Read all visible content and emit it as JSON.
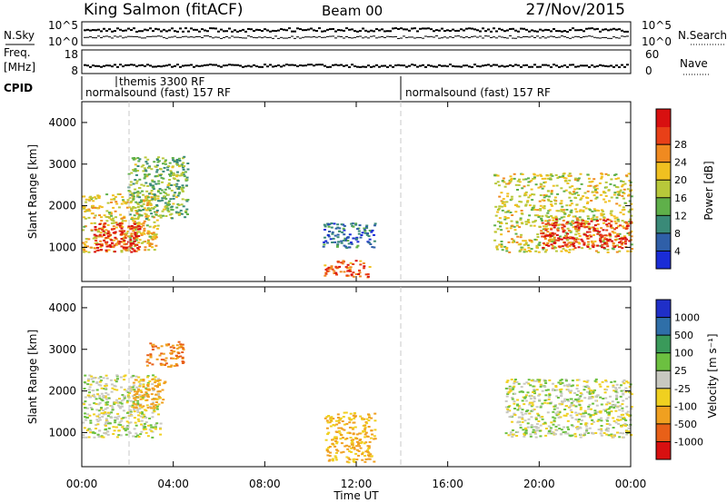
{
  "header": {
    "station": "King Salmon (fitACF)",
    "beam": "Beam 00",
    "date": "27/Nov/2015"
  },
  "strips": {
    "nsky": {
      "label": "N.Sky",
      "ticks": [
        "10^5",
        "10^0"
      ]
    },
    "nsearch": {
      "label": "N.Search",
      "ticks": [
        "10^5",
        "10^0"
      ]
    },
    "freq": {
      "label_line1": "Freq.",
      "label_line2": "[MHz]",
      "ticks": [
        "18",
        "8"
      ]
    },
    "nave": {
      "label": "Nave",
      "ticks": [
        "60",
        "0"
      ]
    },
    "cpid": {
      "label": "CPID",
      "modes": [
        "normalsound (fast) 157 RF",
        "themis 3300 RF",
        "normalsound (fast) 157 RF"
      ]
    }
  },
  "x_axis": {
    "label": "Time UT",
    "ticks": [
      "00:00",
      "04:00",
      "08:00",
      "12:00",
      "16:00",
      "20:00",
      "00:00"
    ]
  },
  "power_panel": {
    "ylabel": "Slant Range [km]",
    "yticks": [
      "1000",
      "2000",
      "3000",
      "4000"
    ],
    "colorbar_label": "Power [dB]",
    "colorbar_ticks": [
      "4",
      "8",
      "12",
      "16",
      "20",
      "24",
      "28"
    ],
    "colors": [
      "#1a2cd6",
      "#2f5fa8",
      "#3a8a78",
      "#5fb04a",
      "#b8c83a",
      "#f0c020",
      "#f08a20",
      "#e84018",
      "#d81010"
    ]
  },
  "velocity_panel": {
    "ylabel": "Slant Range [km]",
    "yticks": [
      "1000",
      "2000",
      "3000",
      "4000"
    ],
    "colorbar_label": "Velocity [m s⁻¹]",
    "colorbar_ticks": [
      "1000",
      "500",
      "100",
      "25",
      "-25",
      "-100",
      "-500",
      "-1000"
    ],
    "colors": [
      "#1f2fc8",
      "#2f6fa8",
      "#3a9a5a",
      "#6cc040",
      "#c8c8c0",
      "#f0d020",
      "#f0a020",
      "#e86018",
      "#d81010"
    ]
  },
  "chart_data": [
    {
      "type": "heatmap",
      "title": "Power [dB]",
      "xlabel": "Time UT",
      "ylabel": "Slant Range [km]",
      "xlim": [
        0,
        24
      ],
      "ylim": [
        180,
        4500
      ],
      "value_range": [
        0,
        30
      ],
      "regions": [
        {
          "t_start": 0.0,
          "t_end": 3.3,
          "range_low": 900,
          "range_high": 2300,
          "value": 18
        },
        {
          "t_start": 0.5,
          "t_end": 2.5,
          "range_low": 900,
          "range_high": 1600,
          "value": 28
        },
        {
          "t_start": 2.0,
          "t_end": 4.6,
          "range_low": 1700,
          "range_high": 3200,
          "value": 12
        },
        {
          "t_start": 10.5,
          "t_end": 12.6,
          "range_low": 300,
          "range_high": 700,
          "value": 24
        },
        {
          "t_start": 10.5,
          "t_end": 12.8,
          "range_low": 1000,
          "range_high": 1600,
          "value": 6
        },
        {
          "t_start": 18.0,
          "t_end": 24.0,
          "range_low": 900,
          "range_high": 2800,
          "value": 16
        },
        {
          "t_start": 20.0,
          "t_end": 24.0,
          "range_low": 1000,
          "range_high": 1700,
          "value": 26
        }
      ]
    },
    {
      "type": "heatmap",
      "title": "Velocity",
      "xlabel": "Time UT",
      "ylabel": "Slant Range [km]",
      "xlim": [
        0,
        24
      ],
      "ylim": [
        180,
        4500
      ],
      "value_range": [
        -1000,
        1000
      ],
      "regions": [
        {
          "t_start": 0.0,
          "t_end": 3.4,
          "range_low": 900,
          "range_high": 2400,
          "value": 0
        },
        {
          "t_start": 2.2,
          "t_end": 3.6,
          "range_low": 1600,
          "range_high": 2300,
          "value": -150
        },
        {
          "t_start": 2.8,
          "t_end": 4.4,
          "range_low": 2600,
          "range_high": 3200,
          "value": -500
        },
        {
          "t_start": 10.6,
          "t_end": 12.8,
          "range_low": 300,
          "range_high": 1500,
          "value": -100
        },
        {
          "t_start": 18.5,
          "t_end": 24.0,
          "range_low": 900,
          "range_high": 2300,
          "value": 0
        }
      ]
    }
  ]
}
